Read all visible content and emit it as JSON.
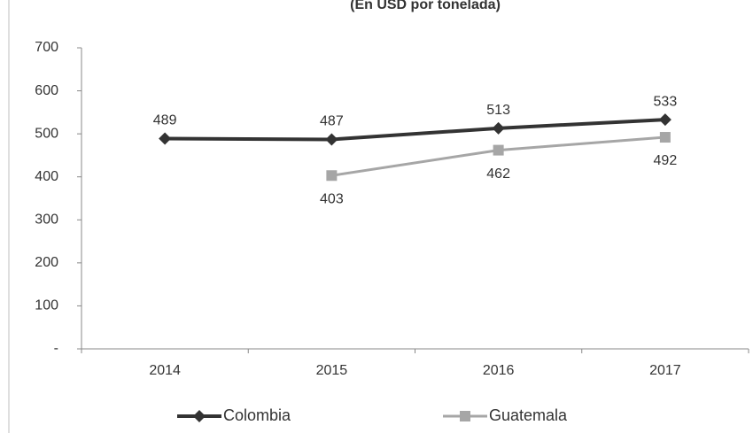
{
  "chart_data": {
    "type": "line",
    "subtitle": "(En USD por tonelada)",
    "categories": [
      "2014",
      "2015",
      "2016",
      "2017"
    ],
    "series": [
      {
        "name": "Colombia",
        "color": "#333333",
        "marker": "diamond",
        "values": [
          489,
          487,
          513,
          533
        ]
      },
      {
        "name": "Guatemala",
        "color": "#a6a6a6",
        "marker": "square",
        "values": [
          null,
          403,
          462,
          492
        ]
      }
    ],
    "ylim": [
      0,
      700
    ],
    "yticks": [
      {
        "value": 0,
        "label": "-"
      },
      100,
      200,
      300,
      400,
      500,
      600,
      700
    ],
    "legend": "bottom"
  }
}
